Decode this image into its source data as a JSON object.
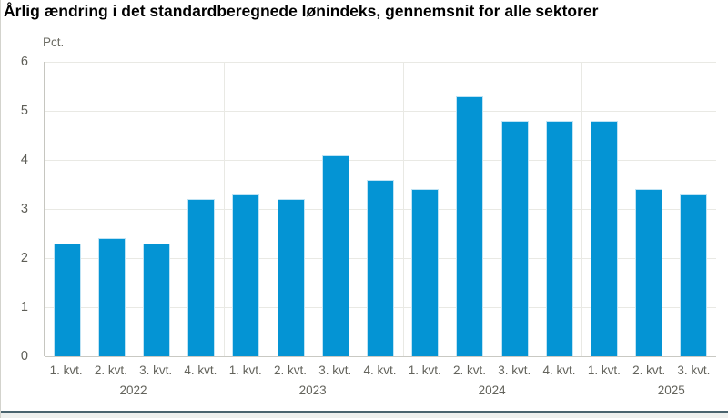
{
  "chart_data": {
    "type": "bar",
    "title": "Årlig ændring i det standardberegnede lønindeks, gennemsnit for alle sektorer",
    "ylabel": "Pct.",
    "xlabel": "",
    "categories": [
      "1. kvt.",
      "2. kvt.",
      "3. kvt.",
      "4. kvt.",
      "1. kvt.",
      "2. kvt.",
      "3. kvt.",
      "4. kvt.",
      "1. kvt.",
      "2. kvt.",
      "3. kvt.",
      "4. kvt.",
      "1. kvt.",
      "2. kvt.",
      "3. kvt."
    ],
    "year_groups": [
      {
        "label": "2022",
        "count": 4
      },
      {
        "label": "2023",
        "count": 4
      },
      {
        "label": "2024",
        "count": 4
      },
      {
        "label": "2025",
        "count": 3
      }
    ],
    "values": [
      2.3,
      2.4,
      2.3,
      3.2,
      3.3,
      3.2,
      4.1,
      3.6,
      3.4,
      5.3,
      4.8,
      4.8,
      4.8,
      3.4,
      3.3
    ],
    "ylim": [
      0,
      6
    ],
    "ytick_step": 1,
    "grid": true,
    "legend": "none",
    "colors": {
      "bar": "#0494d4",
      "bar_edge": "#bfe3f4",
      "grid": "#e9e9e4",
      "axis": "#c6c6c0",
      "tick_label": "#63635c",
      "title": "#000000",
      "footer_line": "#4a646e",
      "footer_strip": "#eef0ee"
    }
  }
}
